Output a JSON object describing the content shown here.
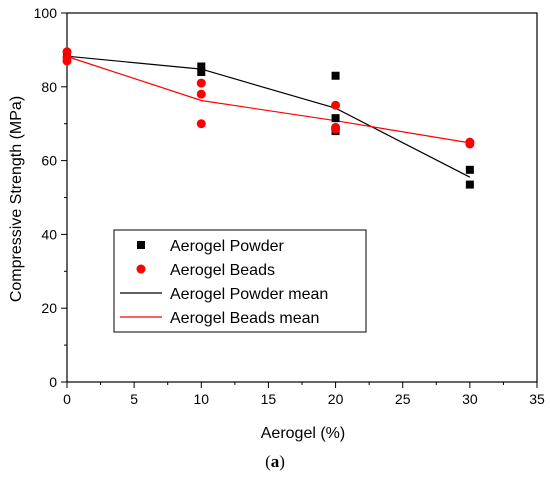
{
  "chart_data": {
    "type": "scatter",
    "xlabel": "Aerogel (%)",
    "ylabel": "Compressive Strength (MPa)",
    "xlim": [
      0,
      35
    ],
    "ylim": [
      0,
      100
    ],
    "x_ticks": [
      "0",
      "5",
      "10",
      "15",
      "20",
      "25",
      "30",
      "35"
    ],
    "y_ticks": [
      "0",
      "20",
      "40",
      "60",
      "80",
      "100"
    ],
    "grid": false,
    "legend_position": "lower-left",
    "caption_open": "(",
    "caption_letter": "a",
    "caption_close": ")",
    "series": [
      {
        "name": "Aerogel Powder",
        "kind": "scatter",
        "marker": "square",
        "color": "#000000",
        "points": [
          [
            0,
            88.5
          ],
          [
            0,
            87.5
          ],
          [
            0,
            89
          ],
          [
            10,
            85.5
          ],
          [
            10,
            84
          ],
          [
            20,
            83
          ],
          [
            20,
            71.5
          ],
          [
            20,
            68
          ],
          [
            30,
            57.5
          ],
          [
            30,
            53.5
          ]
        ]
      },
      {
        "name": "Aerogel Beads",
        "kind": "scatter",
        "marker": "circle",
        "color": "#ff0000",
        "points": [
          [
            0,
            89.5
          ],
          [
            0,
            88
          ],
          [
            0,
            87
          ],
          [
            10,
            81
          ],
          [
            10,
            78
          ],
          [
            10,
            70
          ],
          [
            20,
            75
          ],
          [
            20,
            69
          ],
          [
            20,
            68.5
          ],
          [
            30,
            65
          ],
          [
            30,
            64.5
          ]
        ]
      },
      {
        "name": "Aerogel Powder mean",
        "kind": "line",
        "color": "#000000",
        "points": [
          [
            0,
            88.3
          ],
          [
            10,
            84.8
          ],
          [
            20,
            74.2
          ],
          [
            30,
            55.5
          ]
        ]
      },
      {
        "name": "Aerogel Beads mean",
        "kind": "line",
        "color": "#ff0000",
        "points": [
          [
            0,
            88.2
          ],
          [
            10,
            76.3
          ],
          [
            20,
            70.8
          ],
          [
            30,
            64.8
          ]
        ]
      }
    ]
  }
}
